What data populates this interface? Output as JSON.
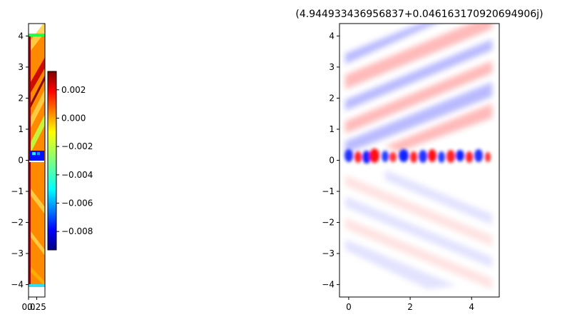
{
  "chart_data": [
    {
      "type": "heatmap",
      "colormap": "jet",
      "xlim": [
        0,
        0.5
      ],
      "ylim": [
        -4.4,
        4.4
      ],
      "x_ticks": [
        0.0,
        0.25
      ],
      "x_tick_labels": [
        "0.0",
        "0.25"
      ],
      "y_ticks": [
        -4,
        -3,
        -2,
        -1,
        0,
        1,
        2,
        3,
        4
      ],
      "y_tick_labels": [
        "−4",
        "−3",
        "−2",
        "−1",
        "0",
        "1",
        "2",
        "3",
        "4"
      ],
      "colorbar": {
        "range": [
          -0.0093,
          0.0033
        ],
        "ticks": [
          -0.008,
          -0.006,
          -0.004,
          -0.002,
          0.0,
          0.002
        ],
        "tick_labels": [
          "−0.008",
          "−0.006",
          "−0.004",
          "−0.002",
          "0.000",
          "0.002"
        ]
      },
      "title": ""
    },
    {
      "type": "heatmap",
      "colormap": "bwr",
      "title": "(4.944933436956837+0.046163170920694906j)",
      "xlim": [
        -0.3,
        4.9
      ],
      "ylim": [
        -4.4,
        4.4
      ],
      "x_ticks": [
        0,
        2,
        4
      ],
      "x_tick_labels": [
        "0",
        "2",
        "4"
      ],
      "y_ticks": [
        -4,
        -3,
        -2,
        -1,
        0,
        1,
        2,
        3,
        4
      ],
      "y_tick_labels": [
        "−4",
        "−3",
        "−2",
        "−1",
        "0",
        "1",
        "2",
        "3",
        "4"
      ],
      "xlabel": "",
      "ylabel": ""
    }
  ]
}
